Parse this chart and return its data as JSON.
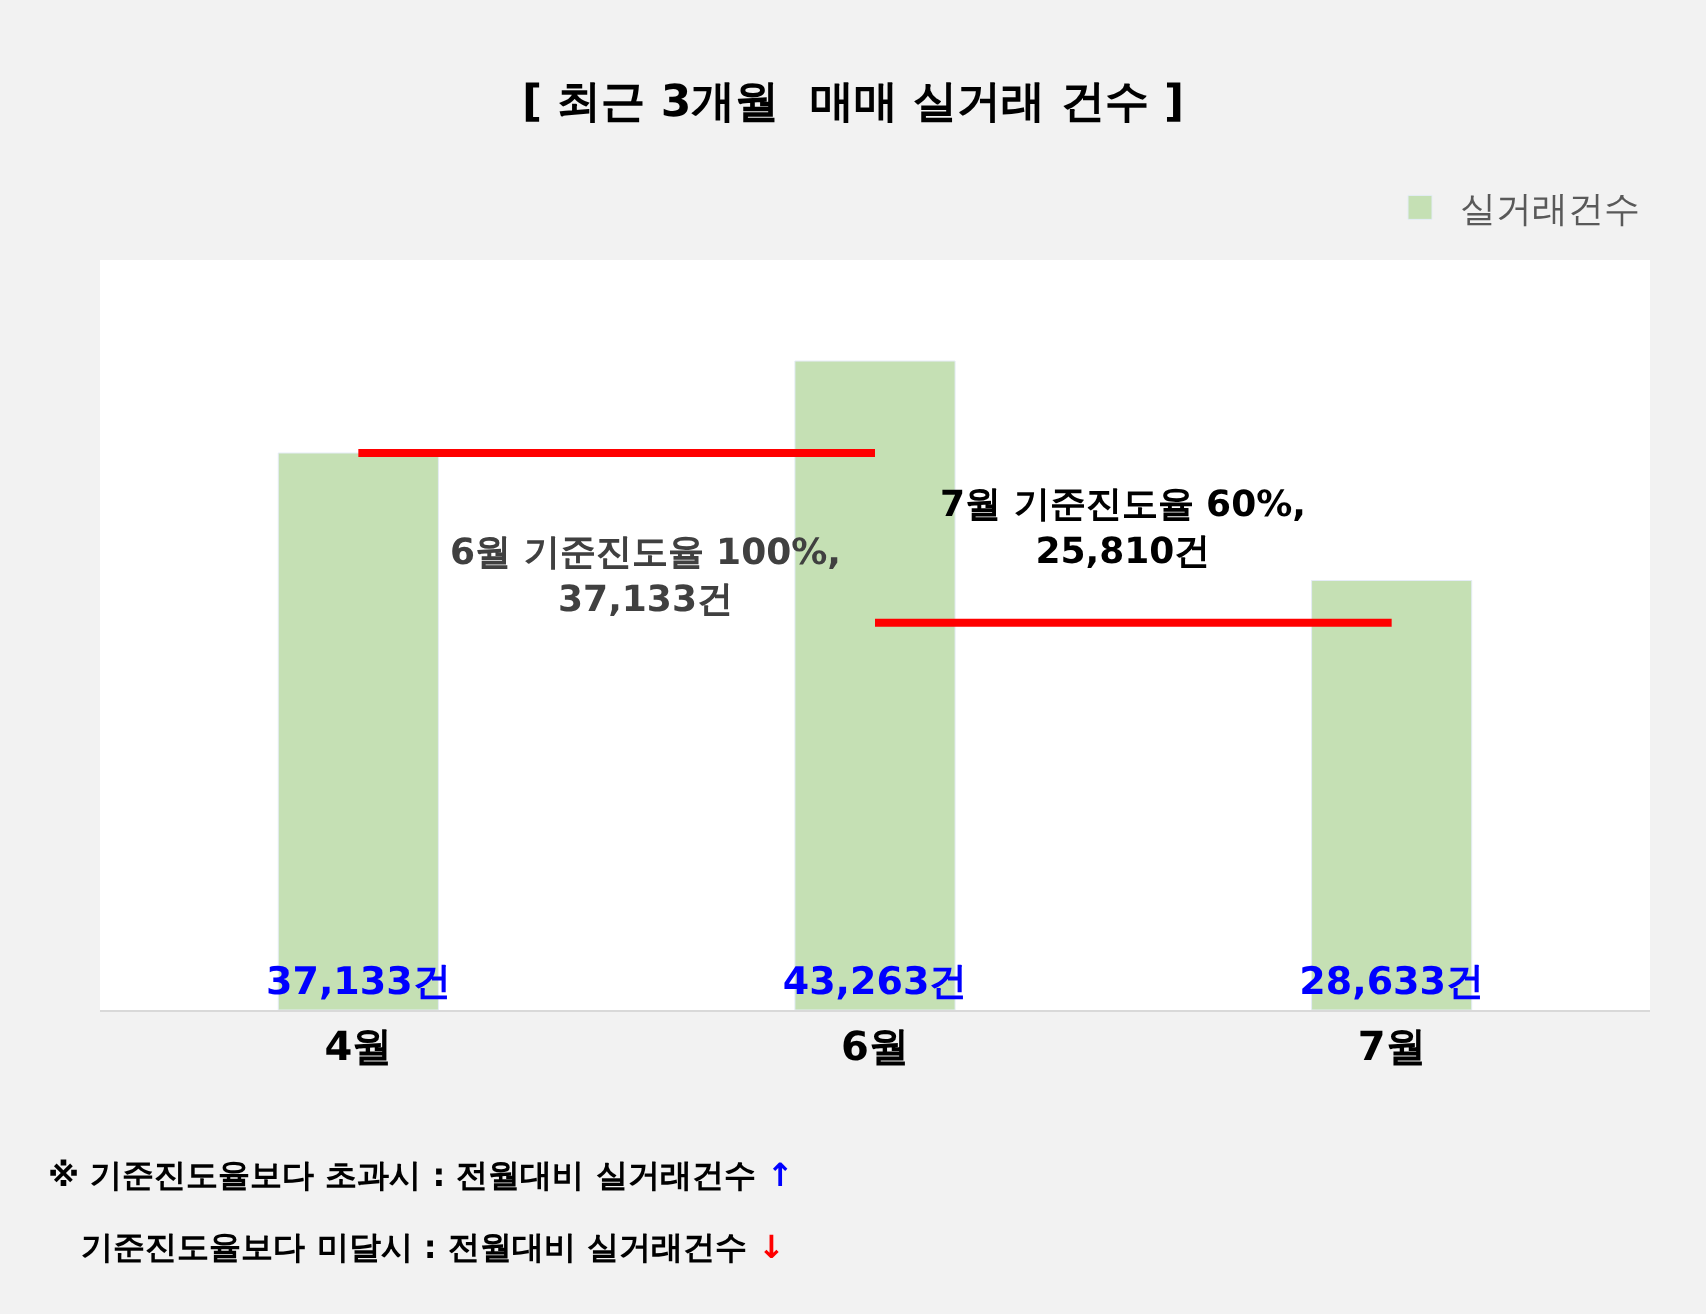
{
  "chart_data": {
    "type": "bar",
    "title": "[ 최근 3개월  매매 실거래 건수 ]",
    "categories": [
      "4월",
      "6월",
      "7월"
    ],
    "series": [
      {
        "name": "실거래건수",
        "color": "#c5e0b4",
        "values": [
          37133,
          43263,
          28633
        ],
        "value_labels": [
          "37,133건",
          "43,263건",
          "28,633건"
        ]
      },
      {
        "type": "line",
        "color": "#ff0000",
        "values": [
          37133,
          37133,
          null
        ],
        "marker": "none"
      },
      {
        "type": "line",
        "color": "#ff0000",
        "values": [
          null,
          25810,
          25810
        ],
        "marker": "none"
      }
    ],
    "ylim": [
      0,
      50000
    ],
    "tick_labels": "x",
    "legend": "top right",
    "annotations": [
      "6월 기준진도율 100%,\n37,133건",
      "7월 기준진도율 60%,\n25,810건",
      "※ 기준진도율보다 초과시 : 전월대비 실거래건수 ↑",
      "   기준진도율보다 미달시 : 전월대비 실거래건수 ↓"
    ]
  }
}
